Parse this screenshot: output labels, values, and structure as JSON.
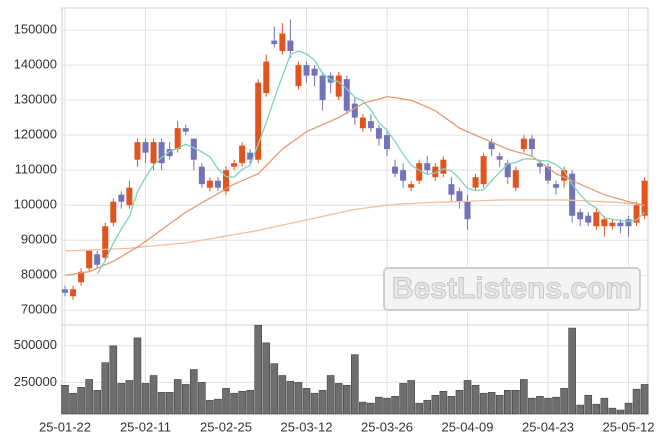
{
  "chart_data": {
    "type": "candlestick",
    "watermark": "BestListens.com",
    "categories": [
      "25-01-22",
      null,
      null,
      null,
      null,
      null,
      null,
      null,
      null,
      null,
      "25-02-11",
      null,
      null,
      null,
      null,
      null,
      null,
      null,
      null,
      null,
      "25-02-25",
      null,
      null,
      null,
      null,
      null,
      null,
      null,
      null,
      null,
      "25-03-12",
      null,
      null,
      null,
      null,
      null,
      null,
      null,
      null,
      null,
      "25-03-26",
      null,
      null,
      null,
      null,
      null,
      null,
      null,
      null,
      null,
      "25-04-09",
      null,
      null,
      null,
      null,
      null,
      null,
      null,
      null,
      null,
      "25-04-23",
      null,
      null,
      null,
      null,
      null,
      null,
      null,
      null,
      null,
      "25-05-12",
      null,
      null
    ],
    "open": [
      76000,
      74000,
      78000,
      82000,
      86000,
      85000,
      95000,
      103000,
      100000,
      113000,
      118000,
      112000,
      118000,
      116000,
      116000,
      122000,
      119000,
      111000,
      105000,
      107000,
      104000,
      111000,
      112000,
      115000,
      113000,
      132000,
      147000,
      144000,
      147000,
      134000,
      140000,
      139000,
      137000,
      137000,
      131000,
      136000,
      129000,
      122000,
      124000,
      122000,
      120000,
      111000,
      110000,
      105000,
      107000,
      112000,
      108000,
      109000,
      106000,
      104000,
      101000,
      105000,
      106000,
      118000,
      114000,
      112000,
      105000,
      116000,
      119000,
      112000,
      111000,
      106000,
      107000,
      109000,
      98000,
      97000,
      94000,
      94000,
      94000,
      95000,
      96000,
      95000,
      97000
    ],
    "high": [
      77000,
      77000,
      82000,
      87000,
      87000,
      95000,
      102000,
      104000,
      107000,
      119000,
      119000,
      119000,
      119000,
      118000,
      124000,
      123000,
      119000,
      112000,
      108000,
      108000,
      111000,
      113000,
      118000,
      116000,
      136000,
      143000,
      151000,
      152000,
      153000,
      141000,
      141000,
      140000,
      138000,
      138000,
      138000,
      137000,
      131000,
      126000,
      126000,
      123000,
      121000,
      113000,
      112000,
      107000,
      113000,
      114000,
      112000,
      114000,
      108000,
      105000,
      103000,
      109000,
      115000,
      119000,
      115000,
      113000,
      111000,
      120000,
      120000,
      113000,
      112000,
      107000,
      111000,
      110000,
      99000,
      98000,
      99000,
      97000,
      96000,
      96000,
      97000,
      101000,
      108000
    ],
    "low": [
      74000,
      73000,
      77000,
      81000,
      82000,
      84000,
      94000,
      99000,
      99000,
      111000,
      112000,
      110000,
      110000,
      113000,
      115000,
      120000,
      110000,
      105000,
      104000,
      104000,
      103000,
      110000,
      111000,
      112000,
      112000,
      131000,
      145000,
      143000,
      142000,
      133000,
      135000,
      134000,
      127000,
      132000,
      130000,
      126000,
      123000,
      121000,
      121000,
      117000,
      114000,
      108000,
      105000,
      104000,
      106000,
      109000,
      107000,
      108000,
      101000,
      99000,
      93000,
      104000,
      105000,
      114000,
      111000,
      106000,
      104000,
      115000,
      114000,
      109000,
      106000,
      103000,
      105000,
      95000,
      94000,
      94000,
      93000,
      91000,
      93000,
      92000,
      91000,
      94000,
      96000
    ],
    "close": [
      75000,
      76000,
      81000,
      87000,
      83000,
      94000,
      101000,
      101000,
      105000,
      118000,
      115000,
      118000,
      112000,
      114000,
      122000,
      121000,
      113000,
      106000,
      107000,
      105000,
      110000,
      112000,
      117000,
      113000,
      135000,
      141000,
      146000,
      149000,
      144000,
      140000,
      137000,
      137000,
      130000,
      135000,
      137000,
      127000,
      125000,
      125000,
      122000,
      119000,
      116000,
      109000,
      107000,
      106000,
      112000,
      110000,
      111000,
      113000,
      103000,
      101000,
      96000,
      108000,
      114000,
      116000,
      113000,
      108000,
      110000,
      119000,
      116000,
      111000,
      107000,
      105000,
      110000,
      97000,
      96000,
      95000,
      98000,
      96000,
      95000,
      94000,
      94000,
      100000,
      107000
    ],
    "up_color": "#e2541f",
    "down_color": "#7373b9",
    "ylim": [
      65800,
      156300
    ],
    "yticks": [
      70000,
      80000,
      90000,
      100000,
      110000,
      120000,
      130000,
      140000,
      150000
    ],
    "grid": true,
    "lines": [
      {
        "color": "#f0bfa0",
        "values": [
          87000,
          87000,
          87100,
          87200,
          87300,
          87400,
          87500,
          87600,
          87700,
          88000,
          88200,
          88400,
          88600,
          88800,
          89000,
          89200,
          89600,
          90000,
          90400,
          90800,
          91200,
          91600,
          92000,
          92400,
          92800,
          93300,
          93800,
          94300,
          94800,
          95300,
          95800,
          96300,
          96800,
          97300,
          97800,
          98300,
          98800,
          99100,
          99400,
          99700,
          100000,
          100200,
          100400,
          100500,
          100600,
          100700,
          100800,
          100900,
          101000,
          101000,
          101100,
          101200,
          101300,
          101400,
          101500,
          101500,
          101500,
          101500,
          101500,
          101500,
          101500,
          101500,
          101500,
          101400,
          101300,
          101200,
          101100,
          101000,
          100900,
          100700,
          100500,
          100300,
          100000
        ]
      },
      {
        "color": "#e69a74",
        "values": [
          80000,
          80300,
          80700,
          81000,
          82000,
          83000,
          84000,
          85300,
          86700,
          88000,
          89700,
          91300,
          93000,
          94700,
          96300,
          98000,
          99300,
          100700,
          102000,
          103300,
          104700,
          106000,
          107000,
          108000,
          109000,
          111300,
          113700,
          116000,
          117700,
          119300,
          121000,
          122000,
          123000,
          124000,
          125000,
          126300,
          127700,
          129000,
          129700,
          130300,
          131000,
          130700,
          130300,
          130000,
          129000,
          128000,
          127000,
          125300,
          123700,
          122000,
          121000,
          120000,
          119000,
          118000,
          117000,
          116000,
          115300,
          114700,
          114000,
          112300,
          110700,
          109000,
          108000,
          107000,
          106000,
          105000,
          104000,
          103000,
          102300,
          101700,
          101000,
          100500,
          100000
        ]
      },
      {
        "color": "#7fd3bd",
        "values": [
          null,
          null,
          null,
          null,
          80400,
          84200,
          89200,
          93200,
          96800,
          103800,
          108000,
          111400,
          113600,
          115400,
          116200,
          117400,
          116400,
          115200,
          113800,
          110400,
          108200,
          108000,
          110200,
          111400,
          117400,
          123600,
          130400,
          136800,
          143000,
          144000,
          143200,
          141400,
          137600,
          135800,
          135200,
          133200,
          130800,
          129800,
          127200,
          123600,
          121400,
          118200,
          114600,
          111400,
          110000,
          108800,
          109200,
          110400,
          109800,
          107600,
          104800,
          104200,
          104400,
          107000,
          109400,
          111800,
          112200,
          113200,
          113200,
          112800,
          112600,
          111600,
          109800,
          106000,
          103000,
          100600,
          99200,
          96400,
          96000,
          95600,
          95400,
          95800,
          98000
        ]
      }
    ],
    "volume": {
      "color": "#6e6e6e",
      "values": [
        230000,
        176000,
        216000,
        270000,
        196000,
        385000,
        500000,
        243000,
        263000,
        554000,
        243000,
        297000,
        182000,
        182000,
        270000,
        236000,
        338000,
        250000,
        128000,
        135000,
        209000,
        176000,
        189000,
        196000,
        640000,
        520000,
        378000,
        297000,
        257000,
        250000,
        209000,
        176000,
        196000,
        297000,
        243000,
        230000,
        439000,
        115000,
        108000,
        149000,
        142000,
        155000,
        243000,
        263000,
        108000,
        128000,
        162000,
        189000,
        155000,
        196000,
        263000,
        230000,
        176000,
        182000,
        162000,
        196000,
        196000,
        270000,
        142000,
        155000,
        142000,
        149000,
        209000,
        621000,
        95000,
        162000,
        101000,
        142000,
        74000,
        61000,
        108000,
        203000,
        236000
      ],
      "ylim": [
        34000,
        642000
      ],
      "yticks": [
        250000,
        500000
      ]
    }
  }
}
